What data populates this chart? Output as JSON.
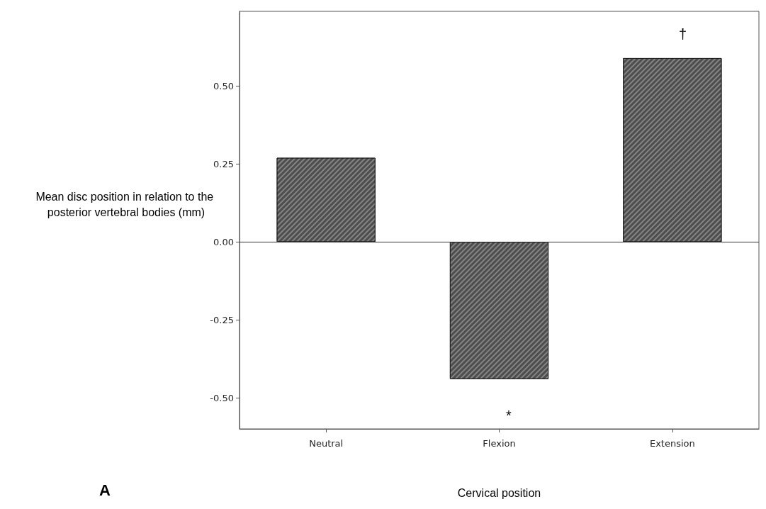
{
  "chart_data": {
    "type": "bar",
    "xlabel": "Cervical position",
    "ylabel": "Mean disc position in relation to the posterior vertebral bodies (mm)",
    "categories": [
      "Neutral",
      "Flexion",
      "Extension"
    ],
    "values": [
      0.27,
      -0.44,
      0.59
    ],
    "color": "#4d4d4d",
    "ylim": [
      -0.6,
      0.74
    ],
    "yticks": [
      {
        "value": -0.5,
        "label": "-0.50"
      },
      {
        "value": -0.25,
        "label": "-0.25"
      },
      {
        "value": 0,
        "label": "0.00"
      },
      {
        "value": 0.25,
        "label": "0.25"
      },
      {
        "value": 0.5,
        "label": "0.50"
      }
    ],
    "ref_lines": [
      {
        "axis": "y",
        "value": 0,
        "color": "#333333"
      }
    ],
    "annotations": [
      "*",
      "†",
      "A"
    ],
    "grid": false
  }
}
